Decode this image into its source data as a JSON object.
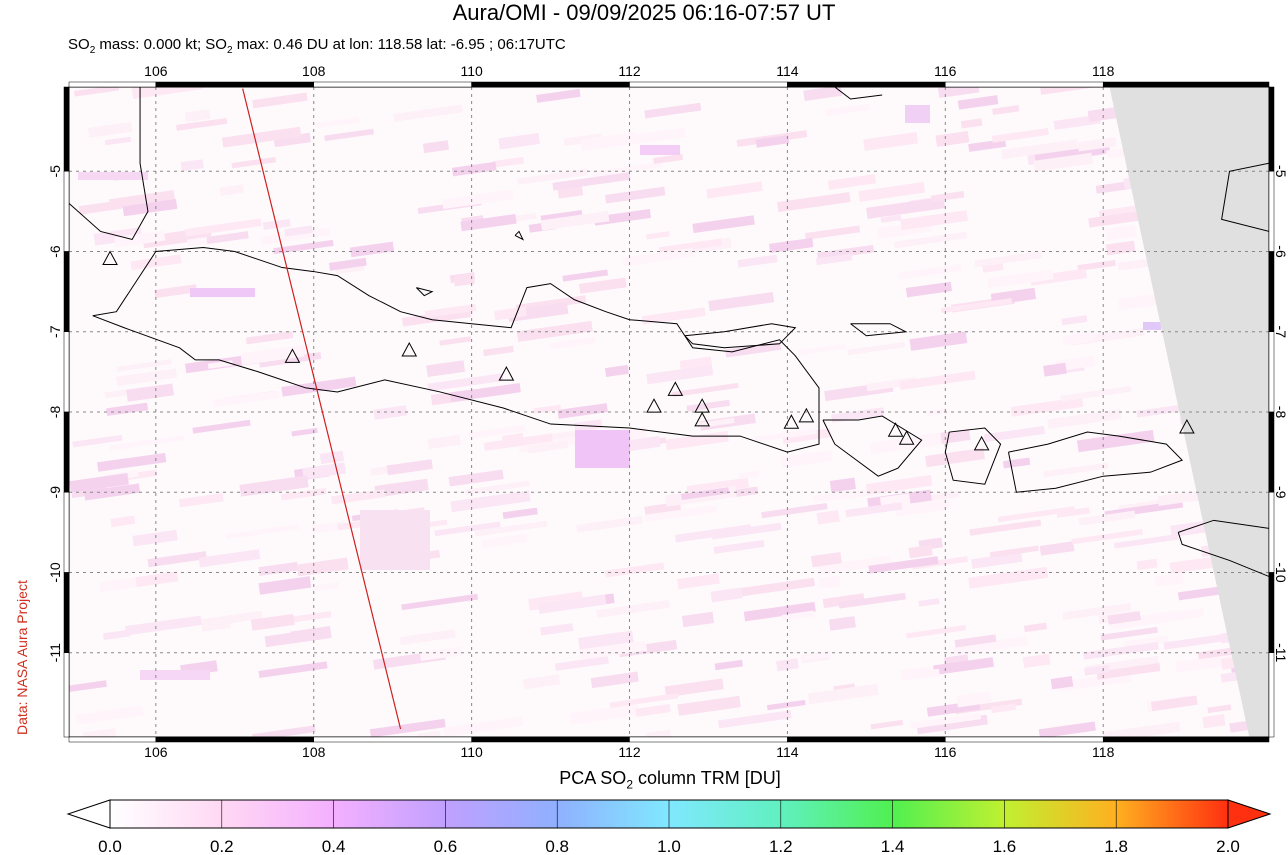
{
  "header": {
    "title": "Aura/OMI - 09/09/2025 06:16-07:57 UT",
    "subtitle_parts": [
      "SO",
      "2",
      " mass: 0.000 kt; SO",
      "2",
      " max: 0.46 DU at lon: 118.58 lat: -6.95 ; 06:17UTC"
    ]
  },
  "credit": "Data: NASA Aura Project",
  "map": {
    "lon_range": [
      104.9,
      120.1
    ],
    "lat_range": [
      -12.05,
      -3.95
    ],
    "lon_ticks": [
      106,
      108,
      110,
      112,
      114,
      116,
      118
    ],
    "lon_tick_labels": [
      "106",
      "108",
      "110",
      "112",
      "114",
      "116",
      "118"
    ],
    "lat_ticks": [
      -5,
      -6,
      -7,
      -8,
      -9,
      -10,
      -11
    ],
    "lat_tick_labels": [
      "-5",
      "-6",
      "-7",
      "-8",
      "-9",
      "-10",
      "-11"
    ],
    "no_data_color": "#e0e0e0",
    "coast_color": "#000000",
    "track_color": "#cc2020",
    "volcano_marker": "triangle-icon",
    "volcanoes": [
      {
        "lon": 105.42,
        "lat": -6.1
      },
      {
        "lon": 107.73,
        "lat": -7.32
      },
      {
        "lon": 109.21,
        "lat": -7.24
      },
      {
        "lon": 110.44,
        "lat": -7.54
      },
      {
        "lon": 112.31,
        "lat": -7.94
      },
      {
        "lon": 112.58,
        "lat": -7.73
      },
      {
        "lon": 112.92,
        "lat": -7.94
      },
      {
        "lon": 112.92,
        "lat": -8.11
      },
      {
        "lon": 114.05,
        "lat": -8.14
      },
      {
        "lon": 114.24,
        "lat": -8.06
      },
      {
        "lon": 115.37,
        "lat": -8.24
      },
      {
        "lon": 115.51,
        "lat": -8.34
      },
      {
        "lon": 116.46,
        "lat": -8.41
      },
      {
        "lon": 119.06,
        "lat": -8.2
      }
    ],
    "orbit_track": [
      {
        "lon": 107.1,
        "lat": -3.97
      },
      {
        "lon": 109.1,
        "lat": -11.95
      }
    ]
  },
  "colorbar": {
    "title_parts": [
      "PCA SO",
      "2",
      " column TRM [DU]"
    ],
    "ticks": [
      0.0,
      0.2,
      0.4,
      0.6,
      0.8,
      1.0,
      1.2,
      1.4,
      1.6,
      1.8,
      2.0
    ],
    "tick_labels": [
      "0.0",
      "0.2",
      "0.4",
      "0.6",
      "0.8",
      "1.0",
      "1.2",
      "1.4",
      "1.6",
      "1.8",
      "2.0"
    ],
    "colors": [
      "#ffffff",
      "#ffd8f4",
      "#f4b0ff",
      "#c0a0ff",
      "#90b0ff",
      "#80e8ff",
      "#60f0c0",
      "#50f050",
      "#c0f030",
      "#ffb020",
      "#ff3010"
    ]
  }
}
